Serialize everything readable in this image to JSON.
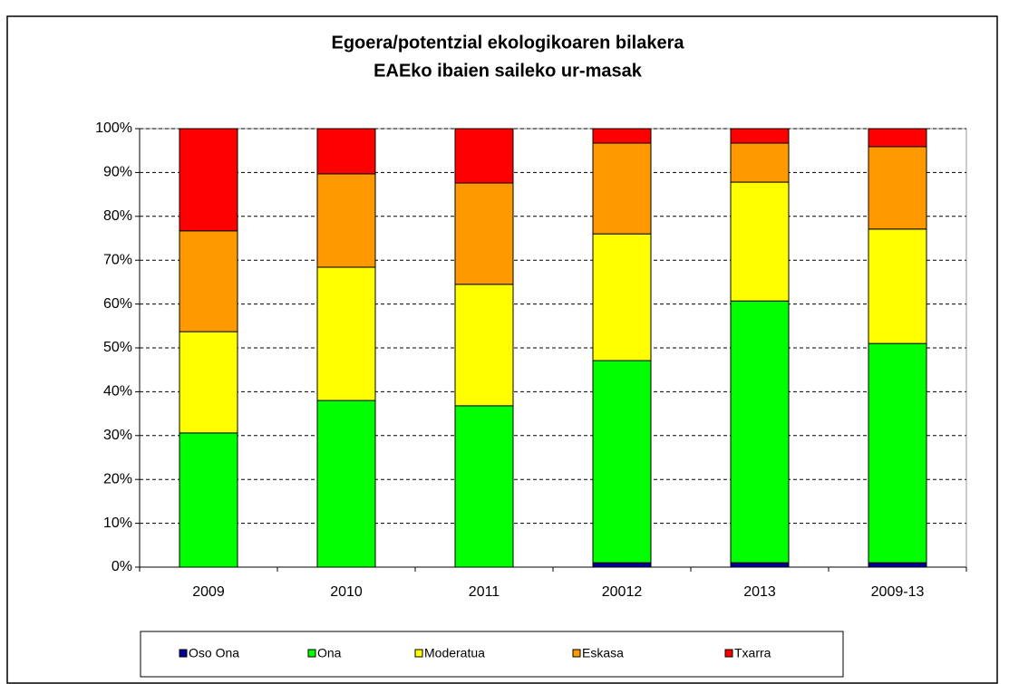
{
  "chart_data": {
    "type": "stacked_bar",
    "title": "Egoera/potentzial ekologikoaren bilakera",
    "subtitle": "EAEko ibaien saileko ur-masak",
    "categories": [
      "2009",
      "2010",
      "2011",
      "20012",
      "2013",
      "2009-13"
    ],
    "series": [
      {
        "name": "Oso Ona",
        "color": "#000099",
        "values": [
          0,
          0,
          0,
          1,
          1,
          1
        ]
      },
      {
        "name": "Ona",
        "color": "#00ff00",
        "values": [
          30.6,
          38,
          36.8,
          46.1,
          59.7,
          50
        ]
      },
      {
        "name": "Moderatua",
        "color": "#ffff00",
        "values": [
          23.1,
          30.4,
          27.7,
          28.9,
          27.1,
          26.1
        ]
      },
      {
        "name": "Eskasa",
        "color": "#ff9900",
        "values": [
          23,
          21.3,
          23.1,
          20.7,
          8.9,
          18.8
        ]
      },
      {
        "name": "Txarra",
        "color": "#ff0000",
        "values": [
          23.3,
          10.3,
          12.4,
          3.3,
          3.3,
          4.1
        ]
      }
    ],
    "ylim": [
      0,
      100
    ],
    "yticks": [
      {
        "value": 0,
        "label": "0%"
      },
      {
        "value": 10,
        "label": "10%"
      },
      {
        "value": 20,
        "label": "20%"
      },
      {
        "value": 30,
        "label": "30%"
      },
      {
        "value": 40,
        "label": "40%"
      },
      {
        "value": 50,
        "label": "50%"
      },
      {
        "value": 60,
        "label": "60%"
      },
      {
        "value": 70,
        "label": "70%"
      },
      {
        "value": 80,
        "label": "80%"
      },
      {
        "value": 90,
        "label": "90%"
      },
      {
        "value": 100,
        "label": "100%"
      }
    ],
    "grid": true,
    "legend": "bottom"
  }
}
